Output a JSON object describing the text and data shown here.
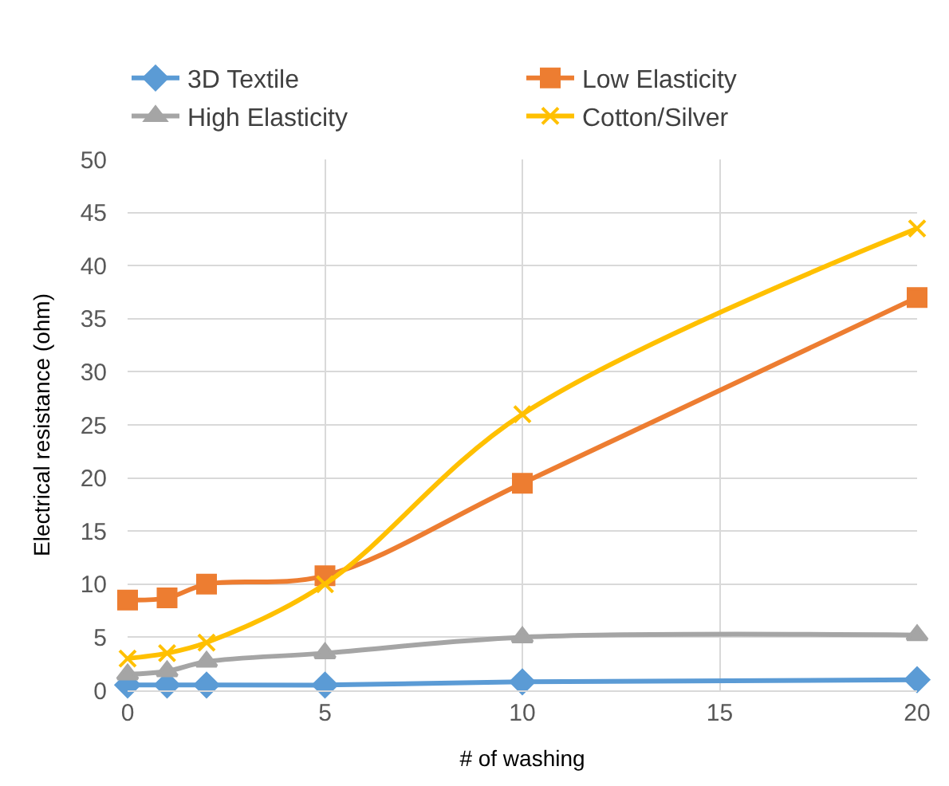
{
  "chart_data": {
    "type": "line",
    "xlabel": "# of washing",
    "ylabel": "Electrical resistance (ohm)",
    "x": [
      0,
      1,
      2,
      5,
      10,
      20
    ],
    "series": [
      {
        "name": "3D Textile",
        "color": "#5b9bd5",
        "marker": "diamond",
        "values": [
          0.5,
          0.5,
          0.5,
          0.5,
          0.8,
          1.0
        ]
      },
      {
        "name": "Low Elasticity",
        "color": "#ed7d31",
        "marker": "square",
        "values": [
          8.5,
          8.7,
          10,
          10.8,
          19.5,
          37
        ]
      },
      {
        "name": "High Elasticity",
        "color": "#a5a5a5",
        "marker": "triangle",
        "values": [
          1.5,
          1.8,
          2.7,
          3.5,
          5,
          5.2
        ]
      },
      {
        "name": "Cotton/Silver",
        "color": "#ffc000",
        "marker": "cross",
        "values": [
          3,
          3.5,
          4.5,
          10,
          26,
          43.5
        ]
      }
    ],
    "xlim": [
      0,
      20
    ],
    "xticks": [
      0,
      5,
      10,
      15,
      20
    ],
    "ylim": [
      0,
      50
    ],
    "yticks": [
      0,
      5,
      10,
      15,
      20,
      25,
      30,
      35,
      40,
      45,
      50
    ],
    "grid": true,
    "legend": "top",
    "line_style": "solid"
  }
}
